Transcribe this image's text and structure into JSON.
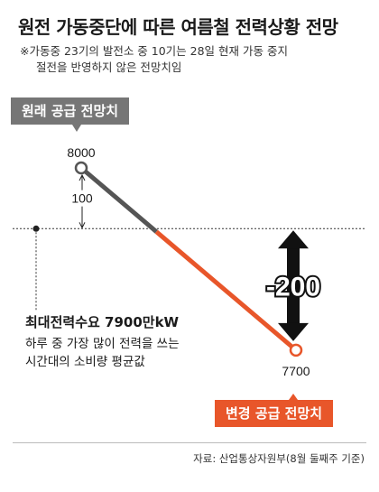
{
  "header": {
    "title": "원전 가동중단에 따른 여름철 전력상황 전망",
    "note_line1": "※가동중 23기의 발전소 중 10기는 28일 현재 가동 중지",
    "note_line2": "절전을 반영하지 않은 전망치임"
  },
  "callouts": {
    "original": "원래 공급 전망치",
    "revised": "변경 공급 전망치"
  },
  "legend": {
    "line1": "최대전력수요 7900만kW",
    "line2": "하루 중 가장 많이 전력을 쓰는",
    "line3": "시간대의 소비량 평균값"
  },
  "source": "자료: 산업통상자원부(8월 둘째주 기준)",
  "colors": {
    "original": "#555555",
    "revised": "#e8562a",
    "arrow": "#111111"
  },
  "chart_data": {
    "type": "line",
    "unit": "만kW",
    "series": [
      {
        "name": "공급 전망치",
        "points": [
          {
            "label": "원래 공급 전망치",
            "value": 8000
          },
          {
            "label": "변경 공급 전망치",
            "value": 7700
          }
        ]
      }
    ],
    "reference_line": {
      "label": "최대전력수요 7900만kW",
      "value": 7900
    },
    "annotations": [
      {
        "text": "8000",
        "value": 8000
      },
      {
        "text": "100",
        "from": 7900,
        "to": 8000
      },
      {
        "text": "-200",
        "from": 7700,
        "to": 7900
      },
      {
        "text": "7700",
        "value": 7700
      }
    ]
  }
}
